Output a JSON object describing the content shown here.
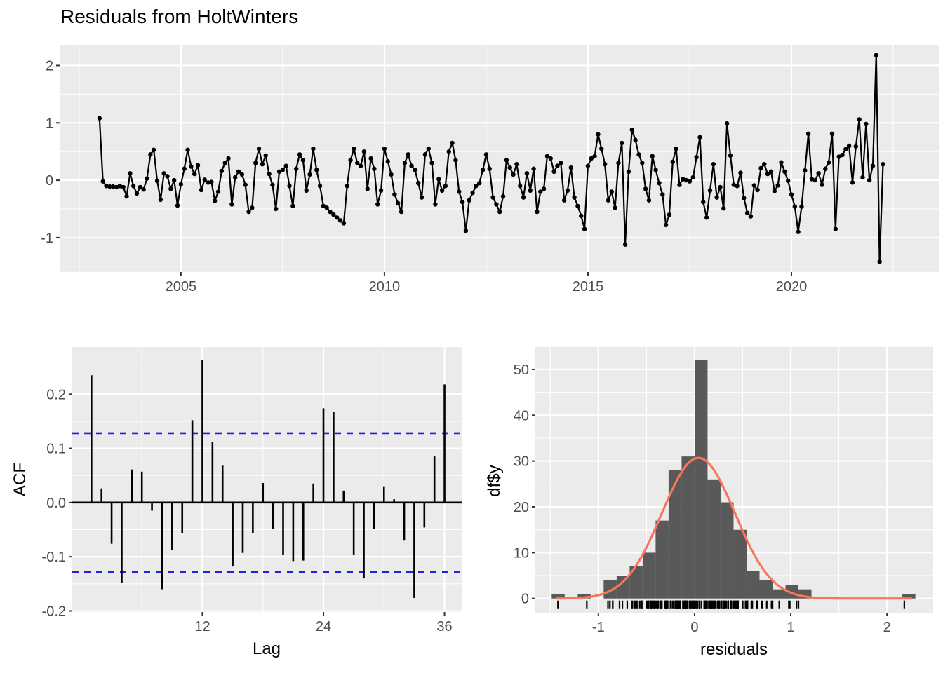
{
  "title": "Residuals from HoltWinters",
  "colors": {
    "panel_bg": "#EBEBEB",
    "grid": "#FFFFFF",
    "series": "#000000",
    "hist_fill": "#595959",
    "curve": "#F8765D",
    "confidence": "#2121DF",
    "tick_mark": "#333333",
    "tick_text": "#4D4D4D",
    "title_text": "#000000"
  },
  "chart_data": [
    {
      "type": "line",
      "name": "residuals-time-series",
      "title": "Residuals from HoltWinters",
      "xlabel": "",
      "ylabel": "",
      "x_start": 2003.0,
      "x_step": 0.08333,
      "values": [
        1.08,
        -0.02,
        -0.1,
        -0.11,
        -0.11,
        -0.12,
        -0.1,
        -0.12,
        -0.28,
        0.12,
        -0.1,
        -0.23,
        -0.12,
        -0.16,
        0.03,
        0.45,
        0.53,
        -0.01,
        -0.34,
        0.12,
        0.07,
        -0.15,
        0.0,
        -0.44,
        -0.07,
        0.2,
        0.53,
        0.24,
        0.11,
        0.26,
        -0.17,
        0.01,
        -0.04,
        -0.03,
        -0.36,
        -0.2,
        0.16,
        0.3,
        0.38,
        -0.42,
        0.05,
        0.15,
        0.1,
        -0.08,
        -0.55,
        -0.48,
        0.3,
        0.55,
        0.28,
        0.43,
        0.11,
        -0.08,
        -0.5,
        0.15,
        0.18,
        0.25,
        -0.1,
        -0.45,
        0.2,
        0.45,
        0.35,
        -0.18,
        0.1,
        0.55,
        0.18,
        -0.1,
        -0.45,
        -0.48,
        -0.55,
        -0.6,
        -0.65,
        -0.7,
        -0.75,
        -0.1,
        0.35,
        0.55,
        0.3,
        0.25,
        0.5,
        -0.15,
        0.38,
        0.2,
        -0.42,
        -0.18,
        0.55,
        0.33,
        0.1,
        -0.25,
        -0.4,
        -0.55,
        0.3,
        0.45,
        0.25,
        0.18,
        -0.05,
        -0.3,
        0.45,
        0.55,
        0.3,
        -0.42,
        0.02,
        -0.18,
        -0.1,
        0.5,
        0.65,
        0.35,
        -0.2,
        -0.38,
        -0.88,
        -0.35,
        -0.22,
        -0.1,
        -0.05,
        0.18,
        0.45,
        0.2,
        -0.3,
        -0.42,
        -0.55,
        -0.28,
        0.35,
        0.22,
        0.1,
        0.28,
        -0.1,
        -0.3,
        0.12,
        -0.18,
        0.2,
        -0.55,
        -0.2,
        -0.15,
        0.42,
        0.38,
        0.15,
        0.25,
        0.3,
        -0.35,
        -0.18,
        0.22,
        -0.3,
        -0.45,
        -0.62,
        -0.85,
        0.25,
        0.38,
        0.42,
        0.8,
        0.55,
        0.28,
        -0.35,
        -0.2,
        -0.48,
        0.3,
        0.65,
        -1.12,
        0.15,
        0.88,
        0.7,
        0.45,
        0.3,
        -0.15,
        -0.35,
        0.42,
        0.18,
        -0.05,
        -0.25,
        -0.78,
        -0.6,
        0.32,
        0.55,
        -0.08,
        0.02,
        0.0,
        -0.02,
        0.05,
        0.4,
        0.75,
        -0.38,
        -0.65,
        -0.18,
        0.28,
        -0.3,
        -0.12,
        -0.49,
        0.99,
        0.43,
        -0.08,
        -0.1,
        0.13,
        -0.31,
        -0.57,
        -0.63,
        -0.09,
        -0.17,
        0.21,
        0.28,
        0.11,
        0.15,
        -0.19,
        -0.09,
        0.31,
        0.15,
        -0.01,
        -0.25,
        -0.46,
        -0.9,
        -0.46,
        0.17,
        0.81,
        0.02,
        0.0,
        0.12,
        -0.08,
        0.2,
        0.31,
        0.81,
        -0.85,
        0.41,
        0.44,
        0.54,
        0.6,
        -0.04,
        0.59,
        1.06,
        0.05,
        0.98,
        0.0,
        0.25,
        2.18,
        -1.42,
        0.28
      ],
      "x_ticks": [
        2005,
        2010,
        2015,
        2020
      ],
      "x_tick_labels": [
        "2005",
        "2010",
        "2015",
        "2020"
      ],
      "x_minor": [
        2002.5,
        2007.5,
        2012.5,
        2017.5,
        2022.5
      ],
      "y_ticks": [
        -1,
        0,
        1,
        2
      ],
      "y_tick_labels": [
        "-1",
        "0",
        "1",
        "2"
      ],
      "y_minor": [
        -1.5,
        -0.5,
        0.5,
        1.5
      ],
      "xlim": [
        2002.02,
        2023.62
      ],
      "ylim": [
        -1.6,
        2.36
      ],
      "grid": true
    },
    {
      "type": "bar",
      "name": "acf",
      "xlabel": "Lag",
      "ylabel": "ACF",
      "lag_start": 1,
      "values": [
        0.235,
        0.026,
        -0.076,
        -0.148,
        0.061,
        0.057,
        -0.015,
        -0.16,
        -0.088,
        -0.057,
        0.152,
        0.263,
        0.112,
        0.068,
        -0.118,
        -0.093,
        -0.057,
        0.036,
        -0.049,
        -0.097,
        -0.108,
        -0.107,
        0.035,
        0.174,
        0.168,
        0.022,
        -0.097,
        -0.14,
        -0.049,
        0.03,
        0.006,
        -0.069,
        -0.176,
        -0.046,
        0.085,
        0.218
      ],
      "confidence_bounds": [
        -0.128,
        0.128
      ],
      "x_ticks": [
        12,
        24,
        36
      ],
      "x_tick_labels": [
        "12",
        "24",
        "36"
      ],
      "x_minor": [
        6,
        18,
        30
      ],
      "y_ticks": [
        -0.2,
        -0.1,
        0,
        0.1,
        0.2
      ],
      "y_tick_labels": [
        "-0.2",
        "-0.1",
        "0.0",
        "0.1",
        "0.2"
      ],
      "y_minor": [
        -0.15,
        -0.05,
        0.05,
        0.15,
        0.25
      ],
      "xlim": [
        -0.9,
        37.7
      ],
      "ylim": [
        -0.202,
        0.287
      ],
      "grid": true
    },
    {
      "type": "histogram",
      "name": "residuals-histogram",
      "xlabel": "residuals",
      "ylabel": "df$y",
      "bin_start": -1.485,
      "bin_width": 0.135,
      "counts": [
        1,
        0,
        1,
        0,
        4,
        5,
        7,
        10,
        17,
        28,
        31,
        52,
        26,
        21,
        15,
        6,
        4,
        2,
        3,
        2,
        0,
        0,
        0,
        0,
        0,
        0,
        0,
        1
      ],
      "normal_curve": {
        "mean": 0.04,
        "sd": 0.38,
        "peak": 30.7,
        "x_range": [
          -1.43,
          2.26
        ]
      },
      "rug_from_series": true,
      "x_ticks": [
        -1,
        0,
        1,
        2
      ],
      "x_tick_labels": [
        "-1",
        "0",
        "1",
        "2"
      ],
      "x_minor": [
        -1.5,
        -0.5,
        0.5,
        1.5
      ],
      "y_ticks": [
        0,
        10,
        20,
        30,
        40,
        50
      ],
      "y_tick_labels": [
        "0",
        "10",
        "20",
        "30",
        "40",
        "50"
      ],
      "y_minor": [
        5,
        15,
        25,
        35,
        45,
        55
      ],
      "xlim": [
        -1.655,
        2.48
      ],
      "ylim": [
        -3.1,
        55.2
      ],
      "grid": true
    }
  ]
}
